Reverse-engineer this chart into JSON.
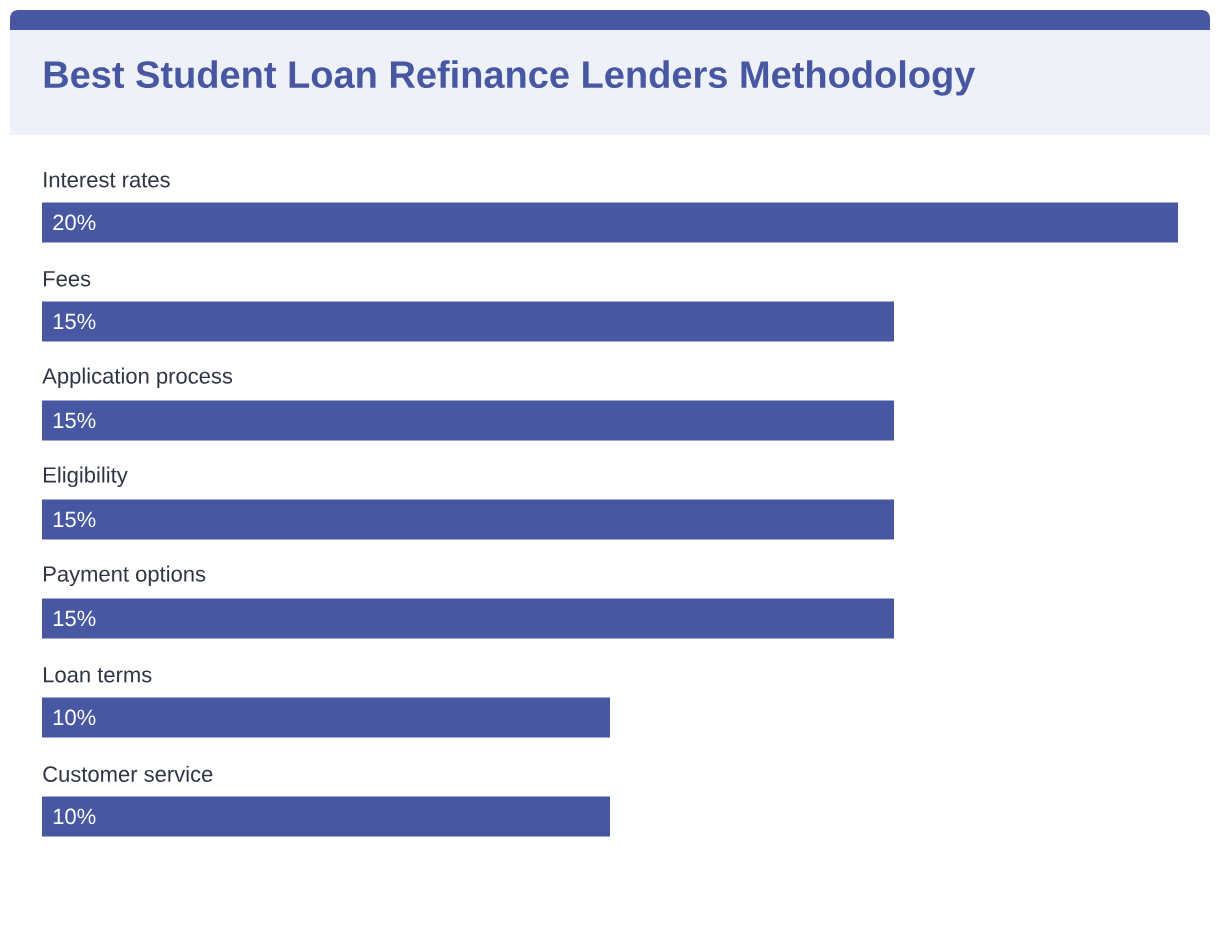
{
  "chart_data": {
    "type": "bar",
    "orientation": "horizontal",
    "title": "Best Student Loan Refinance Lenders Methodology",
    "categories": [
      "Interest rates",
      "Fees",
      "Application process",
      "Eligibility",
      "Payment options",
      "Loan terms",
      "Customer service"
    ],
    "values": [
      20,
      15,
      15,
      15,
      15,
      10,
      10
    ],
    "value_labels": [
      "20%",
      "15%",
      "15%",
      "15%",
      "15%",
      "10%",
      "10%"
    ],
    "color": "#4757a2"
  }
}
